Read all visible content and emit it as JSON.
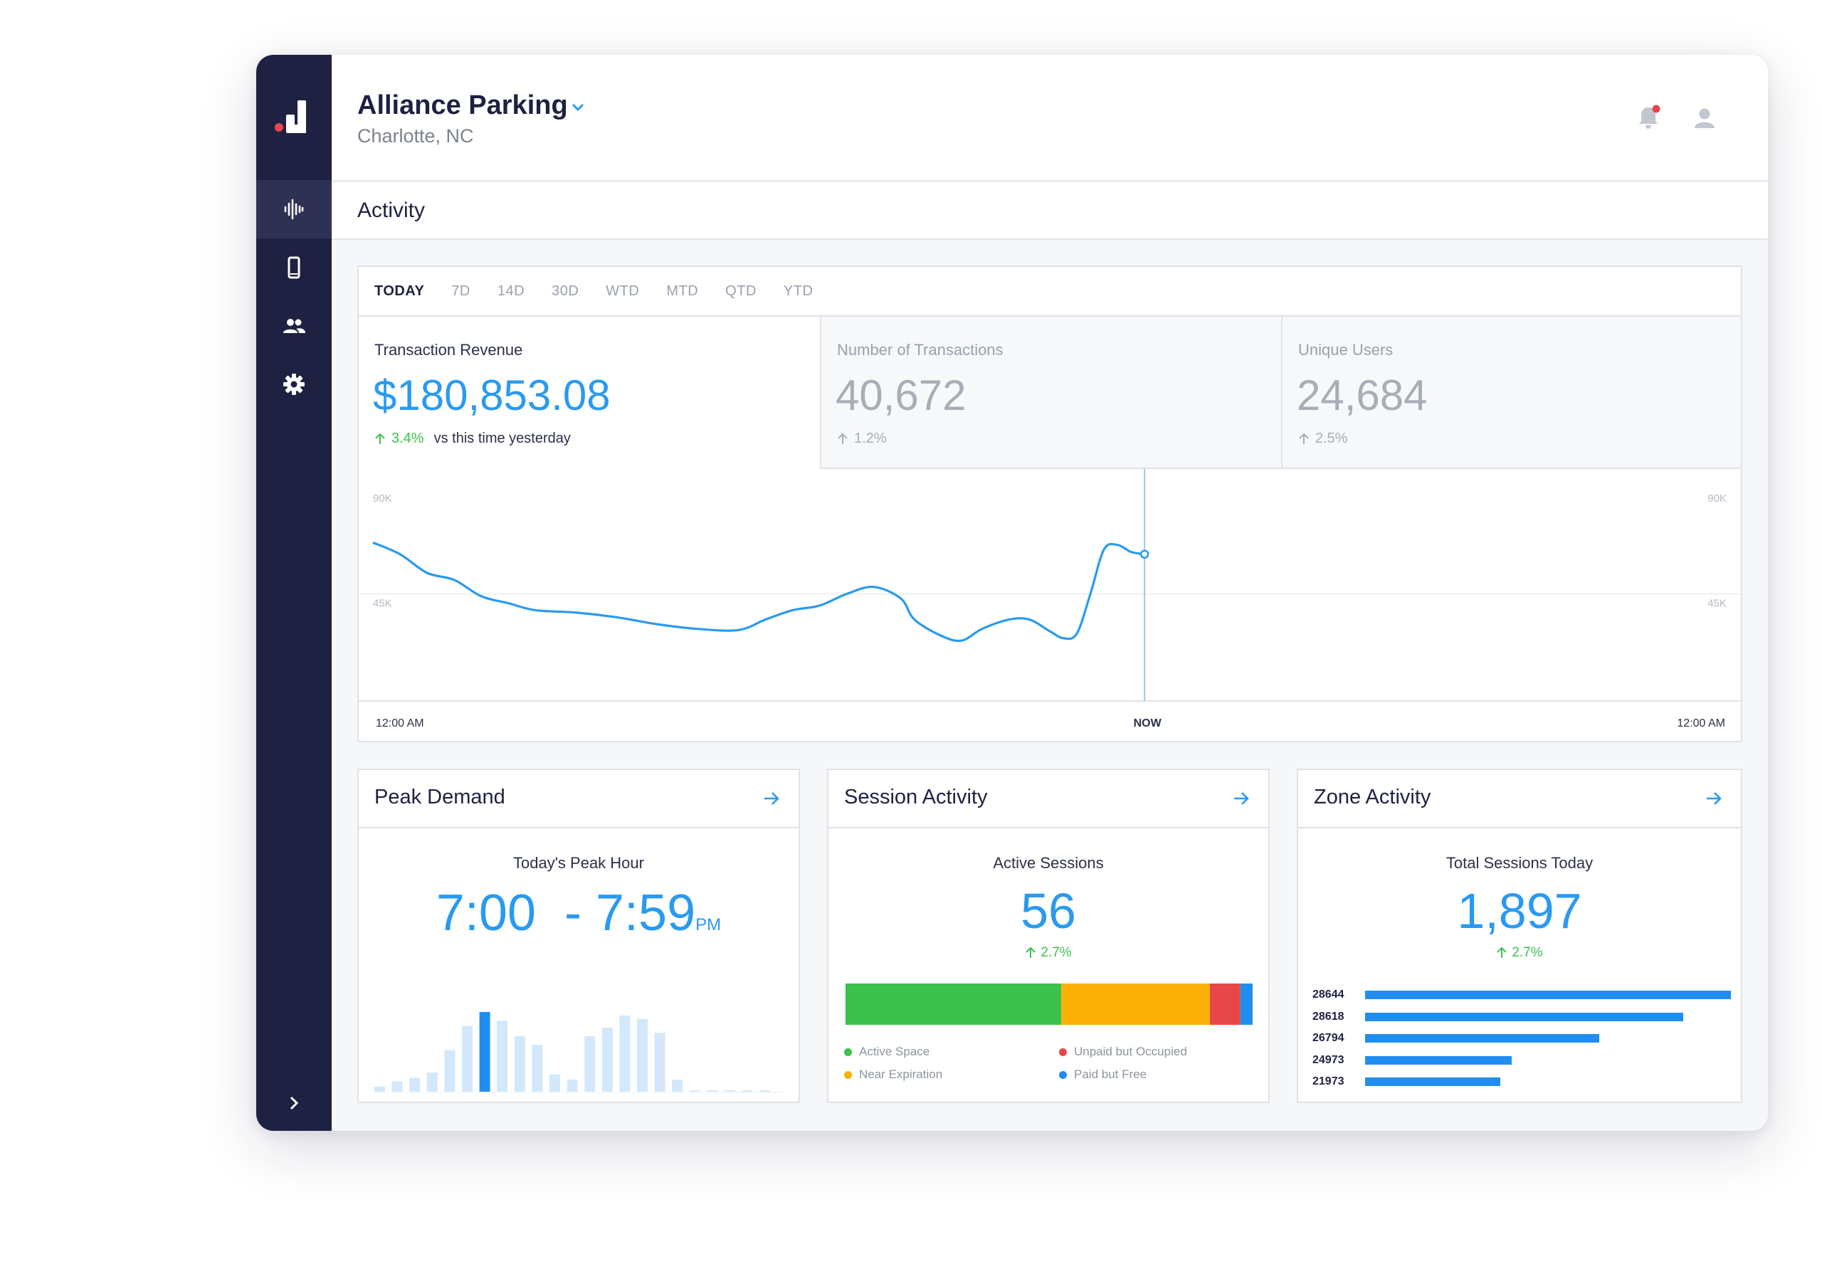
{
  "header": {
    "org_name": "Alliance Parking",
    "location": "Charlotte, NC"
  },
  "section": {
    "title": "Activity"
  },
  "sidebar": {
    "items": [
      {
        "icon": "activity-waveform-icon",
        "active": true
      },
      {
        "icon": "mobile-phone-icon",
        "active": false
      },
      {
        "icon": "users-icon",
        "active": false
      },
      {
        "icon": "gear-icon",
        "active": false
      }
    ]
  },
  "activity": {
    "tabs": [
      "TODAY",
      "7D",
      "14D",
      "30D",
      "WTD",
      "MTD",
      "QTD",
      "YTD"
    ],
    "active_tab": "TODAY",
    "metrics": [
      {
        "label": "Transaction Revenue",
        "value": "$180,853.08",
        "delta": "3.4%",
        "note": "vs this time yesterday"
      },
      {
        "label": "Number of Transactions",
        "value": "40,672",
        "delta": "1.2%"
      },
      {
        "label": "Unique Users",
        "value": "24,684",
        "delta": "2.5%"
      }
    ],
    "x_labels": {
      "start": "12:00 AM",
      "now": "NOW",
      "end": "12:00 AM"
    },
    "y_labels": {
      "top": "90K",
      "mid": "45K"
    }
  },
  "colors": {
    "accent": "#2a9af0",
    "sidebar": "#1f2142",
    "green": "#3cc14d",
    "orange": "#fbb006",
    "red": "#e8474a",
    "blue": "#1f8ef0",
    "notification": "#e8474a"
  },
  "chart_data": [
    {
      "type": "line",
      "title": "",
      "ylabel": "",
      "xlabel": "",
      "ylim": [
        0,
        90000
      ],
      "y_ticks": [
        "45K",
        "90K"
      ],
      "x_labels": [
        "12:00 AM",
        "NOW",
        "12:00 AM"
      ],
      "x_fraction_now": 0.57,
      "series": [
        {
          "x": [
            0,
            0.02,
            0.04,
            0.06,
            0.08,
            0.1,
            0.12,
            0.15,
            0.18,
            0.21,
            0.24,
            0.27,
            0.29,
            0.31,
            0.33,
            0.35,
            0.37,
            0.39,
            0.4,
            0.42,
            0.435,
            0.45,
            0.47,
            0.485,
            0.5,
            0.51,
            0.52,
            0.53,
            0.54,
            0.55,
            0.56,
            0.57
          ],
          "values": [
            67000,
            62000,
            54000,
            51000,
            44000,
            41000,
            38000,
            37000,
            35000,
            32000,
            30000,
            29500,
            34000,
            38000,
            40000,
            45000,
            48000,
            43000,
            34000,
            27000,
            25000,
            30000,
            34000,
            34000,
            29000,
            26000,
            28000,
            45000,
            64000,
            66000,
            63000,
            62000
          ]
        }
      ]
    },
    {
      "type": "bar",
      "title": "",
      "values": [
        3,
        6,
        8,
        11,
        24,
        38,
        46,
        41,
        32,
        27,
        10,
        7,
        32,
        37,
        44,
        42,
        34,
        7,
        0.5,
        0.5,
        0.5,
        0.5,
        0.5
      ],
      "highlight_index": 6
    },
    {
      "type": "bar",
      "title": "",
      "stacked": true,
      "series": [
        {
          "name": "Active Space",
          "value": 53,
          "color": "#3cc14d"
        },
        {
          "name": "Near Expiration",
          "value": 36.5,
          "color": "#fbb006"
        },
        {
          "name": "Unpaid but Occupied",
          "value": 7.5,
          "color": "#e8474a"
        },
        {
          "name": "Paid but Free",
          "value": 3,
          "color": "#1f8ef0"
        }
      ]
    },
    {
      "type": "bar",
      "title": "",
      "orientation": "horizontal",
      "categories": [
        "28644",
        "28618",
        "26794",
        "24973",
        "21973"
      ],
      "values": [
        100,
        87,
        64,
        40,
        37
      ]
    }
  ],
  "peak_demand": {
    "title": "Peak Demand",
    "subtitle": "Today's Peak Hour",
    "start": "7:00",
    "end": "- 7:59",
    "ampm": "PM"
  },
  "session_activity": {
    "title": "Session Activity",
    "subtitle": "Active Sessions",
    "value": "56",
    "delta": "2.7%",
    "legend": [
      "Active Space",
      "Unpaid but Occupied",
      "Near Expiration",
      "Paid but Free"
    ]
  },
  "zone_activity": {
    "title": "Zone Activity",
    "subtitle": "Total Sessions Today",
    "value": "1,897",
    "delta": "2.7%",
    "zones": [
      "28644",
      "28618",
      "26794",
      "24973",
      "21973"
    ]
  }
}
